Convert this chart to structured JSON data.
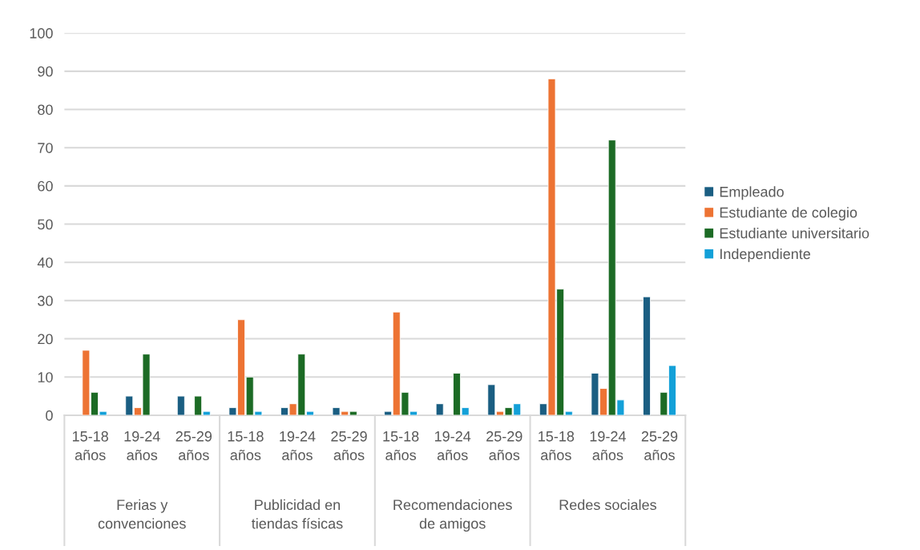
{
  "chart_data": {
    "type": "bar",
    "categories": [
      "15-18 años",
      "19-24 años",
      "25-29 años",
      "15-18 años",
      "19-24 años",
      "25-29 años",
      "15-18 años",
      "19-24 años",
      "25-29 años",
      "15-18 años",
      "19-24 años",
      "25-29 años"
    ],
    "annotations": [
      "Ferias y convenciones",
      "Publicidad en tiendas físicas",
      "Recomendaciones de amigos",
      "Redes sociales"
    ],
    "series": [
      {
        "name": "Empleado",
        "color": "#1a5e82",
        "values": [
          null,
          5,
          5,
          2,
          2,
          2,
          1,
          3,
          8,
          3,
          11,
          31
        ]
      },
      {
        "name": "Estudiante de colegio",
        "color": "#ed7333",
        "values": [
          17,
          2,
          null,
          25,
          3,
          1,
          27,
          null,
          1,
          88,
          7,
          null
        ]
      },
      {
        "name": "Estudiante universitario",
        "color": "#1c6b25",
        "values": [
          6,
          16,
          5,
          10,
          16,
          1,
          6,
          11,
          2,
          33,
          72,
          6
        ]
      },
      {
        "name": "Independiente",
        "color": "#13a0d8",
        "values": [
          1,
          null,
          1,
          1,
          1,
          null,
          1,
          2,
          3,
          1,
          4,
          13
        ]
      }
    ],
    "ylim": [
      0,
      100
    ],
    "yticks": [
      0,
      10,
      20,
      30,
      40,
      50,
      60,
      70,
      80,
      90,
      100
    ],
    "grid": "y",
    "legend": "right"
  }
}
